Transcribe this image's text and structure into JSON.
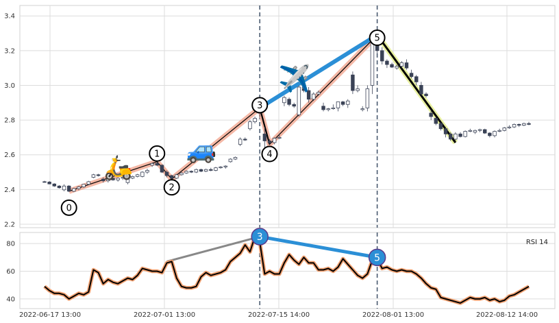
{
  "chart_data": [
    {
      "type": "candlestick",
      "panel": "price",
      "ylim": [
        2.18,
        3.46
      ],
      "y_ticks": [
        "2.2",
        "2.4",
        "2.6",
        "2.8",
        "3.0",
        "3.2",
        "3.4"
      ],
      "grid": true,
      "x_tick_labels": [
        "2022-06-17 13:00",
        "2022-07-01 13:00",
        "2022-07-15 14:00",
        "2022-08-01 13:00",
        "2022-08-12 14:00"
      ],
      "series": [
        {
          "name": "",
          "values": [
            [
              2.445,
              2.45,
              2.44,
              2.443
            ],
            [
              2.443,
              2.448,
              2.43,
              2.432
            ],
            [
              2.432,
              2.436,
              2.415,
              2.42
            ],
            [
              2.42,
              2.425,
              2.405,
              2.41
            ],
            [
              2.398,
              2.43,
              2.39,
              2.42
            ],
            [
              2.42,
              2.425,
              2.385,
              2.39
            ],
            [
              2.39,
              2.41,
              2.385,
              2.405
            ],
            [
              2.405,
              2.42,
              2.395,
              2.415
            ],
            [
              2.415,
              2.43,
              2.41,
              2.43
            ],
            [
              2.43,
              2.45,
              2.425,
              2.445
            ],
            [
              2.47,
              2.49,
              2.465,
              2.485
            ],
            [
              2.485,
              2.49,
              2.475,
              2.48
            ],
            [
              2.46,
              2.47,
              2.44,
              2.45
            ],
            [
              2.45,
              2.47,
              2.44,
              2.465
            ],
            [
              2.465,
              2.47,
              2.45,
              2.455
            ],
            [
              2.455,
              2.47,
              2.445,
              2.465
            ],
            [
              2.465,
              2.48,
              2.455,
              2.47
            ],
            [
              2.44,
              2.47,
              2.43,
              2.465
            ],
            [
              2.465,
              2.48,
              2.46,
              2.475
            ],
            [
              2.475,
              2.49,
              2.47,
              2.485
            ],
            [
              2.475,
              2.505,
              2.47,
              2.5
            ],
            [
              2.5,
              2.52,
              2.49,
              2.51
            ],
            [
              2.54,
              2.555,
              2.53,
              2.55
            ],
            [
              2.55,
              2.56,
              2.535,
              2.54
            ],
            [
              2.54,
              2.545,
              2.495,
              2.5
            ],
            [
              2.5,
              2.51,
              2.47,
              2.48
            ],
            [
              2.48,
              2.485,
              2.46,
              2.465
            ],
            [
              2.465,
              2.49,
              2.46,
              2.485
            ],
            [
              2.485,
              2.5,
              2.48,
              2.495
            ],
            [
              2.495,
              2.51,
              2.49,
              2.505
            ],
            [
              2.505,
              2.51,
              2.495,
              2.5
            ],
            [
              2.5,
              2.52,
              2.495,
              2.515
            ],
            [
              2.515,
              2.52,
              2.5,
              2.505
            ],
            [
              2.505,
              2.52,
              2.5,
              2.515
            ],
            [
              2.515,
              2.525,
              2.505,
              2.51
            ],
            [
              2.51,
              2.53,
              2.505,
              2.525
            ],
            [
              2.525,
              2.535,
              2.52,
              2.53
            ],
            [
              2.53,
              2.54,
              2.52,
              2.535
            ],
            [
              2.56,
              2.58,
              2.555,
              2.575
            ],
            [
              2.575,
              2.59,
              2.57,
              2.585
            ],
            [
              2.66,
              2.7,
              2.65,
              2.69
            ],
            [
              2.69,
              2.7,
              2.68,
              2.685
            ],
            [
              2.75,
              2.8,
              2.74,
              2.79
            ],
            [
              2.79,
              2.82,
              2.78,
              2.81
            ],
            [
              2.87,
              2.9,
              2.82,
              2.84
            ],
            [
              2.72,
              2.76,
              2.62,
              2.68
            ],
            [
              2.68,
              2.69,
              2.66,
              2.67
            ],
            [
              2.67,
              2.7,
              2.66,
              2.695
            ],
            [
              2.695,
              2.72,
              2.69,
              2.7
            ],
            [
              2.9,
              2.94,
              2.88,
              2.93
            ],
            [
              2.92,
              2.93,
              2.88,
              2.89
            ],
            [
              2.89,
              2.9,
              2.87,
              2.88
            ],
            [
              2.83,
              3.0,
              2.82,
              2.99
            ],
            [
              2.99,
              3.02,
              2.96,
              2.97
            ],
            [
              2.97,
              2.99,
              2.9,
              2.92
            ],
            [
              2.92,
              2.96,
              2.91,
              2.95
            ],
            [
              2.95,
              2.97,
              2.94,
              2.96
            ],
            [
              2.88,
              2.9,
              2.85,
              2.86
            ],
            [
              2.86,
              2.87,
              2.85,
              2.865
            ],
            [
              2.865,
              2.89,
              2.86,
              2.87
            ],
            [
              2.87,
              2.9,
              2.85,
              2.905
            ],
            [
              2.905,
              2.91,
              2.88,
              2.89
            ],
            [
              2.89,
              2.92,
              2.87,
              2.91
            ],
            [
              3.06,
              3.08,
              2.95,
              2.97
            ],
            [
              2.97,
              3.0,
              2.96,
              2.98
            ],
            [
              2.86,
              2.88,
              2.85,
              2.865
            ],
            [
              2.87,
              3.0,
              2.85,
              2.98
            ],
            [
              3.0,
              3.28,
              2.95,
              3.25
            ],
            [
              3.25,
              3.3,
              3.18,
              3.2
            ],
            [
              3.2,
              3.22,
              3.12,
              3.14
            ],
            [
              3.14,
              3.15,
              3.1,
              3.12
            ],
            [
              3.12,
              3.13,
              3.1,
              3.105
            ],
            [
              3.1,
              3.12,
              3.09,
              3.11
            ],
            [
              3.11,
              3.14,
              3.1,
              3.13
            ],
            [
              3.13,
              3.15,
              3.09,
              3.1
            ],
            [
              3.07,
              3.09,
              3.04,
              3.05
            ],
            [
              3.05,
              3.06,
              3.0,
              3.02
            ],
            [
              3.0,
              3.02,
              2.94,
              2.95
            ],
            [
              2.95,
              2.96,
              2.93,
              2.94
            ],
            [
              2.84,
              2.86,
              2.8,
              2.82
            ],
            [
              2.81,
              2.82,
              2.77,
              2.78
            ],
            [
              2.78,
              2.79,
              2.74,
              2.75
            ],
            [
              2.75,
              2.76,
              2.7,
              2.72
            ],
            [
              2.72,
              2.73,
              2.68,
              2.69
            ],
            [
              2.69,
              2.73,
              2.68,
              2.72
            ],
            [
              2.72,
              2.73,
              2.7,
              2.705
            ],
            [
              2.705,
              2.74,
              2.7,
              2.735
            ],
            [
              2.735,
              2.75,
              2.73,
              2.74
            ],
            [
              2.73,
              2.745,
              2.72,
              2.74
            ],
            [
              2.74,
              2.75,
              2.73,
              2.745
            ],
            [
              2.745,
              2.75,
              2.72,
              2.725
            ],
            [
              2.725,
              2.73,
              2.7,
              2.71
            ],
            [
              2.71,
              2.74,
              2.7,
              2.735
            ],
            [
              2.735,
              2.75,
              2.73,
              2.74
            ],
            [
              2.74,
              2.76,
              2.735,
              2.755
            ],
            [
              2.755,
              2.77,
              2.75,
              2.76
            ],
            [
              2.76,
              2.78,
              2.755,
              2.775
            ],
            [
              2.775,
              2.78,
              2.76,
              2.77
            ],
            [
              2.77,
              2.785,
              2.765,
              2.78
            ],
            [
              2.78,
              2.79,
              2.77,
              2.775
            ]
          ]
        }
      ],
      "wave_points": [
        {
          "label": "0",
          "index": 5,
          "value": 2.39
        },
        {
          "label": "1",
          "index": 23,
          "value": 2.56
        },
        {
          "label": "2",
          "index": 26,
          "value": 2.46
        },
        {
          "label": "3",
          "index": 44,
          "value": 2.87
        },
        {
          "label": "4",
          "index": 46,
          "value": 2.66
        },
        {
          "label": "5",
          "index": 68,
          "value": 3.29
        }
      ],
      "wave_end": {
        "index": 84,
        "value": 2.67
      },
      "emoji": [
        "🛵",
        "🚙",
        "✈️"
      ],
      "colors": {
        "wave": "#f0a088",
        "zigzag": "#e09070",
        "blue": "#2b8fd6",
        "yellow": "#e8f0a0",
        "bear": "#3a4256",
        "bull_edge": "#3a4256",
        "vline": "#4a5a70"
      }
    },
    {
      "type": "line",
      "panel": "indicator",
      "legend": "RSI 14",
      "ylim": [
        33,
        88
      ],
      "y_ticks": [
        "40",
        "60",
        "80"
      ],
      "grid": true,
      "series": [
        {
          "name": "RSI 14",
          "values": [
            49,
            46,
            44,
            44,
            43,
            40,
            42,
            44,
            43,
            45,
            61,
            59,
            51,
            54,
            52,
            51,
            53,
            55,
            54,
            57,
            62,
            61,
            60,
            60,
            59,
            66,
            67,
            55,
            49,
            48,
            48,
            49,
            56,
            59,
            57,
            58,
            59,
            61,
            67,
            70,
            73,
            79,
            74,
            85,
            81,
            58,
            60,
            58,
            58,
            66,
            72,
            68,
            65,
            70,
            66,
            66,
            61,
            61,
            62,
            60,
            63,
            69,
            65,
            61,
            57,
            55,
            58,
            68,
            69,
            62,
            63,
            61,
            60,
            61,
            60,
            60,
            58,
            55,
            51,
            48,
            47,
            41,
            40,
            39,
            38,
            37,
            39,
            41,
            40,
            40,
            41,
            39,
            40,
            38,
            39,
            42,
            43,
            45,
            47,
            49
          ]
        }
      ],
      "annotations": [
        {
          "label": "3",
          "index": 44,
          "value": 85
        },
        {
          "label": "5",
          "index": 68,
          "value": 70
        }
      ],
      "grey_line_start": {
        "index": 25,
        "value": 67
      }
    }
  ]
}
